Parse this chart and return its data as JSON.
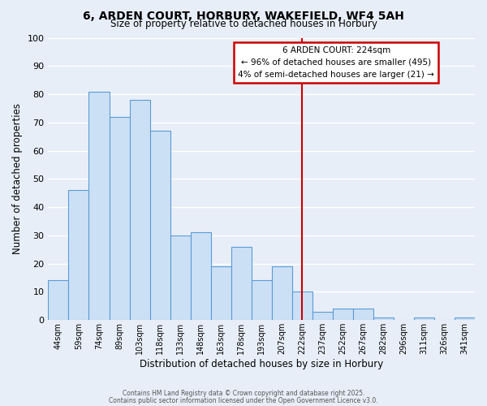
{
  "title": "6, ARDEN COURT, HORBURY, WAKEFIELD, WF4 5AH",
  "subtitle": "Size of property relative to detached houses in Horbury",
  "xlabel": "Distribution of detached houses by size in Horbury",
  "ylabel": "Number of detached properties",
  "bar_labels": [
    "44sqm",
    "59sqm",
    "74sqm",
    "89sqm",
    "103sqm",
    "118sqm",
    "133sqm",
    "148sqm",
    "163sqm",
    "178sqm",
    "193sqm",
    "207sqm",
    "222sqm",
    "237sqm",
    "252sqm",
    "267sqm",
    "282sqm",
    "296sqm",
    "311sqm",
    "326sqm",
    "341sqm"
  ],
  "bar_values": [
    14,
    46,
    81,
    72,
    78,
    67,
    30,
    31,
    19,
    26,
    14,
    19,
    10,
    3,
    4,
    4,
    1,
    0,
    1,
    0,
    1
  ],
  "bar_color": "#cce0f5",
  "bar_edge_color": "#5b9bd5",
  "vline_x_idx": 12,
  "vline_color": "#cc0000",
  "ylim": [
    0,
    100
  ],
  "annotation_title": "6 ARDEN COURT: 224sqm",
  "annotation_line1": "← 96% of detached houses are smaller (495)",
  "annotation_line2": "4% of semi-detached houses are larger (21) →",
  "annotation_box_color": "#ffffff",
  "annotation_box_edge": "#cc0000",
  "footer1": "Contains HM Land Registry data © Crown copyright and database right 2025.",
  "footer2": "Contains public sector information licensed under the Open Government Licence v3.0.",
  "background_color": "#e8eef8",
  "grid_color": "#ffffff"
}
